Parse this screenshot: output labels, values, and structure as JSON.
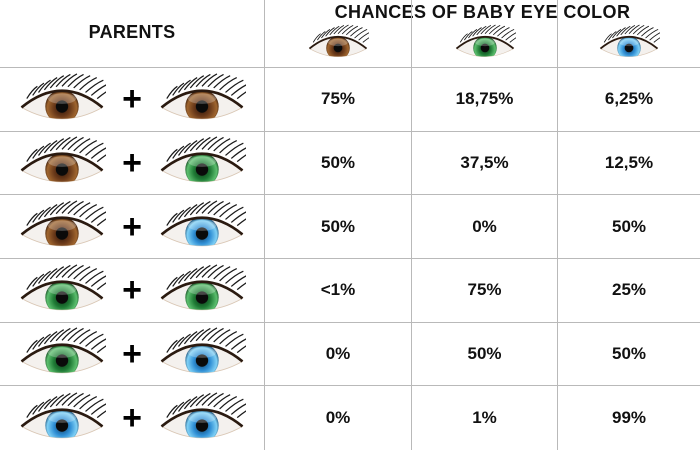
{
  "title": "CHANCES OF BABY EYE COLOR",
  "parents_header": "PARENTS",
  "plus_sign": "+",
  "eye_colors": {
    "brown": {
      "iris": "#6b3a1a",
      "dark": "#2b1206",
      "light": "#a0662f"
    },
    "green": {
      "iris": "#1f7a35",
      "dark": "#0b3516",
      "light": "#5cbf6e"
    },
    "blue": {
      "iris": "#2f8ed4",
      "dark": "#103e66",
      "light": "#7fd0f5"
    }
  },
  "columns": [
    "brown",
    "green",
    "blue"
  ],
  "rows": [
    {
      "parent1": "brown",
      "parent2": "brown",
      "brown": "75%",
      "green": "18,75%",
      "blue": "6,25%"
    },
    {
      "parent1": "brown",
      "parent2": "green",
      "brown": "50%",
      "green": "37,5%",
      "blue": "12,5%"
    },
    {
      "parent1": "brown",
      "parent2": "blue",
      "brown": "50%",
      "green": "0%",
      "blue": "50%"
    },
    {
      "parent1": "green",
      "parent2": "green",
      "brown": "<1%",
      "green": "75%",
      "blue": "25%"
    },
    {
      "parent1": "green",
      "parent2": "blue",
      "brown": "0%",
      "green": "50%",
      "blue": "50%"
    },
    {
      "parent1": "blue",
      "parent2": "blue",
      "brown": "0%",
      "green": "1%",
      "blue": "99%"
    }
  ]
}
